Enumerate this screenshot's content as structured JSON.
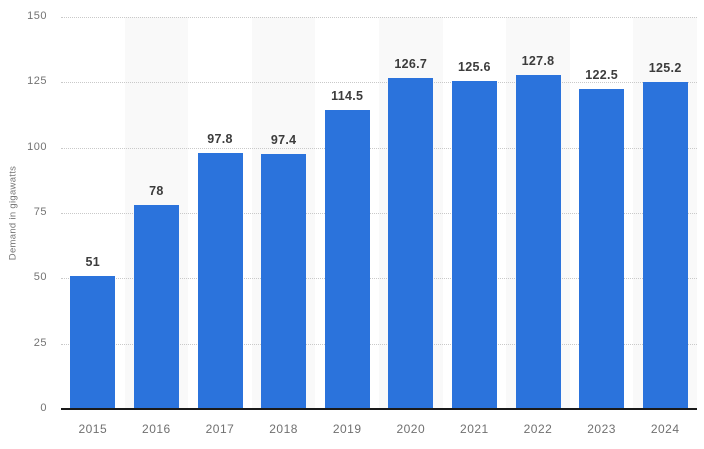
{
  "chart_data": {
    "type": "bar",
    "title": "",
    "xlabel": "",
    "ylabel": "Demand in gigawatts",
    "categories": [
      "2015",
      "2016",
      "2017",
      "2018",
      "2019",
      "2020",
      "2021",
      "2022",
      "2023",
      "2024"
    ],
    "values": [
      51,
      78,
      97.8,
      97.4,
      114.5,
      126.7,
      125.6,
      127.8,
      122.5,
      125.2
    ],
    "value_labels": [
      "51",
      "78",
      "97.8",
      "97.4",
      "114.5",
      "126.7",
      "125.6",
      "127.8",
      "122.5",
      "125.2"
    ],
    "ylim": [
      0,
      150
    ],
    "yticks": [
      0,
      25,
      50,
      75,
      100,
      125,
      150
    ],
    "grid": "horizontal-dotted",
    "legend": "none",
    "alternating_column_bands": true,
    "colors": {
      "bar": "#2b73dc",
      "band": "#f9f9f9",
      "gridline": "#c9c9c9",
      "axis_line": "#1a1a1a",
      "value_label": "#3c3c3c",
      "tick_label": "#737373",
      "background": "#ffffff"
    }
  }
}
